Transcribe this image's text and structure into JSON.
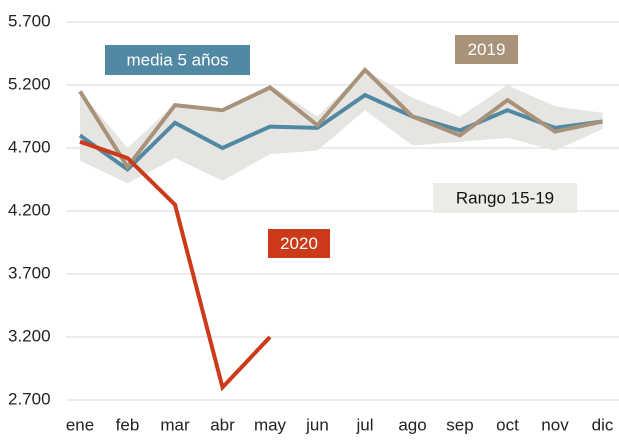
{
  "chart_data": {
    "type": "line",
    "categories": [
      "ene",
      "feb",
      "mar",
      "abr",
      "may",
      "jun",
      "jul",
      "ago",
      "sep",
      "oct",
      "nov",
      "dic"
    ],
    "ylim": [
      2700,
      5700
    ],
    "yticks": [
      {
        "value": 2700,
        "label": "2.700"
      },
      {
        "value": 3200,
        "label": "3.200"
      },
      {
        "value": 3700,
        "label": "3.700"
      },
      {
        "value": 4200,
        "label": "4.200"
      },
      {
        "value": 4700,
        "label": "4.700"
      },
      {
        "value": 5200,
        "label": "5.200"
      },
      {
        "value": 5700,
        "label": "5.700"
      }
    ],
    "grid": true,
    "range": {
      "name": "Rango 15-19",
      "color": "#e7e5e1",
      "upper": [
        5150,
        4700,
        5050,
        5000,
        5200,
        4950,
        5320,
        5100,
        4950,
        5200,
        5030,
        4980
      ],
      "lower": [
        4600,
        4420,
        4620,
        4440,
        4650,
        4680,
        5000,
        4720,
        4750,
        4780,
        4680,
        4850
      ]
    },
    "series": [
      {
        "name": "media 5 años",
        "color": "#5189a5",
        "values": [
          4800,
          4530,
          4900,
          4700,
          4870,
          4860,
          5120,
          4950,
          4840,
          5000,
          4860,
          4910
        ]
      },
      {
        "name": "2019",
        "color": "#a8927a",
        "values": [
          5150,
          4550,
          5040,
          5000,
          5180,
          4880,
          5320,
          4950,
          4800,
          5080,
          4830,
          4910
        ]
      },
      {
        "name": "2020",
        "color": "#cc3a1a",
        "values": [
          4750,
          4620,
          4250,
          2800,
          3200,
          null,
          null,
          null,
          null,
          null,
          null,
          null
        ]
      }
    ]
  }
}
